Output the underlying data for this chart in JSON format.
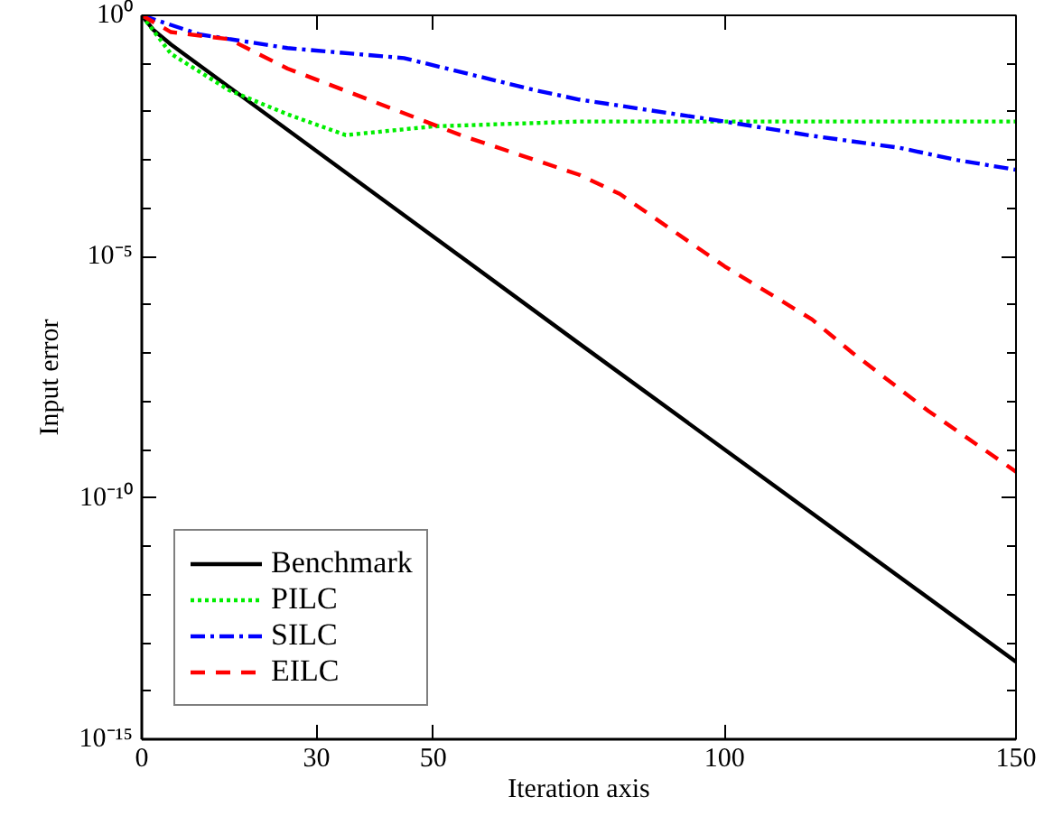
{
  "chart_data": {
    "type": "line",
    "xlabel": "Iteration axis",
    "ylabel": "Input error",
    "log": "y",
    "xlim": [
      0,
      150
    ],
    "ylim": [
      1e-15,
      1
    ],
    "xticks": [
      0,
      30,
      50,
      100,
      150
    ],
    "yticks": [
      {
        "value": 1e-15,
        "label": "10⁻¹⁵"
      },
      {
        "value": 1e-10,
        "label": "10⁻¹⁰"
      },
      {
        "value": 1e-05,
        "label": "10⁻⁵"
      },
      {
        "value": 1,
        "label": "10⁰"
      }
    ],
    "grid": false,
    "legend": "bottom left",
    "series": [
      {
        "name": "Benchmark",
        "color": "#000000",
        "line_style": "solid",
        "x": [
          0,
          2,
          5,
          75,
          150
        ],
        "values": [
          1,
          0.5,
          0.25,
          1.6e-07,
          4e-14
        ]
      },
      {
        "name": "PILC",
        "color": "#00ee00",
        "line_style": "dotted",
        "x": [
          0,
          5,
          15,
          25,
          35,
          50,
          75,
          100,
          150
        ],
        "values": [
          1,
          0.16,
          0.028,
          0.0089,
          0.0033,
          0.005,
          0.0063,
          0.0063,
          0.0063
        ]
      },
      {
        "name": "SILC",
        "color": "#0000ff",
        "line_style": "dashdot",
        "x": [
          0,
          10,
          25,
          45,
          67,
          75,
          100,
          115,
          130,
          140,
          150
        ],
        "values": [
          1,
          0.4,
          0.21,
          0.13,
          0.029,
          0.018,
          0.0063,
          0.0032,
          0.0018,
          0.001,
          0.00063
        ]
      },
      {
        "name": "EILC",
        "color": "#ff0000",
        "line_style": "dashed",
        "x": [
          0,
          5,
          15,
          25,
          40,
          55,
          75,
          82,
          100,
          115,
          122,
          135,
          150
        ],
        "values": [
          1,
          0.45,
          0.32,
          0.079,
          0.016,
          0.0032,
          0.0005,
          0.0002,
          6.3e-06,
          5e-07,
          1e-07,
          6.3e-09,
          3.5e-10
        ]
      }
    ]
  }
}
